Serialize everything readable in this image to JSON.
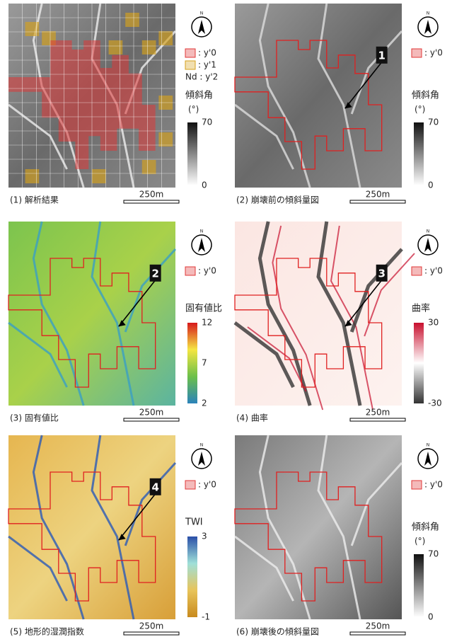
{
  "panels": [
    {
      "caption": "(1) 解析結果",
      "north": "N",
      "scale": "250m",
      "style": "analysis",
      "legend": [
        {
          "label": ": y'0",
          "color": "#e03838"
        },
        {
          "label": ": y'1",
          "color": "#d6a21c"
        },
        {
          "label": "Nd : y'2"
        }
      ],
      "colorbar": {
        "title": "傾斜角",
        "unit": "(°)",
        "ticks": [
          70,
          0
        ],
        "colors": [
          "#111111",
          "#ffffff"
        ]
      }
    },
    {
      "caption": "(2) 崩壊前の傾斜量図",
      "north": "N",
      "scale": "250m",
      "style": "slope",
      "marker": "1",
      "legend": [
        {
          "label": ": y'0",
          "color": "#e03838"
        }
      ],
      "colorbar": {
        "title": "傾斜角",
        "unit": "(°)",
        "ticks": [
          70,
          0
        ],
        "colors": [
          "#111111",
          "#ffffff"
        ]
      }
    },
    {
      "caption": "(3) 固有値比",
      "north": "N",
      "scale": "250m",
      "style": "eigen",
      "marker": "2",
      "legend": [
        {
          "label": ": y'0",
          "color": "#e03838"
        }
      ],
      "colorbar": {
        "title": "固有値比",
        "ticks": [
          12,
          7,
          2
        ],
        "colors": [
          "#d7191c",
          "#f5e642",
          "#6cc04a",
          "#2b83ba"
        ]
      }
    },
    {
      "caption": "(4) 曲率",
      "north": "N",
      "scale": "250m",
      "style": "curv",
      "marker": "3",
      "legend": [
        {
          "label": ": y'0",
          "color": "#e03838"
        }
      ],
      "colorbar": {
        "title": "曲率",
        "ticks": [
          30,
          -30
        ],
        "colors": [
          "#c8102e",
          "#ffffff",
          "#333333"
        ]
      }
    },
    {
      "caption": "(5) 地形的湿潤指数",
      "north": "N",
      "scale": "250m",
      "style": "twi",
      "marker": "4",
      "legend": [
        {
          "label": ": y'0",
          "color": "#e03838"
        }
      ],
      "colorbar": {
        "title": "TWI",
        "ticks": [
          3,
          -1
        ],
        "colors": [
          "#2a4fa8",
          "#9fe0d8",
          "#e8c45a",
          "#c88a1e"
        ]
      }
    },
    {
      "caption": "(6) 崩壊後の傾斜量図",
      "north": "N",
      "scale": "250m",
      "style": "slope2",
      "legend": [
        {
          "label": ": y'0",
          "color": "#e03838"
        }
      ],
      "colorbar": {
        "title": "傾斜角",
        "unit": "(°)",
        "ticks": [
          70,
          0
        ],
        "colors": [
          "#111111",
          "#ffffff"
        ]
      }
    }
  ]
}
